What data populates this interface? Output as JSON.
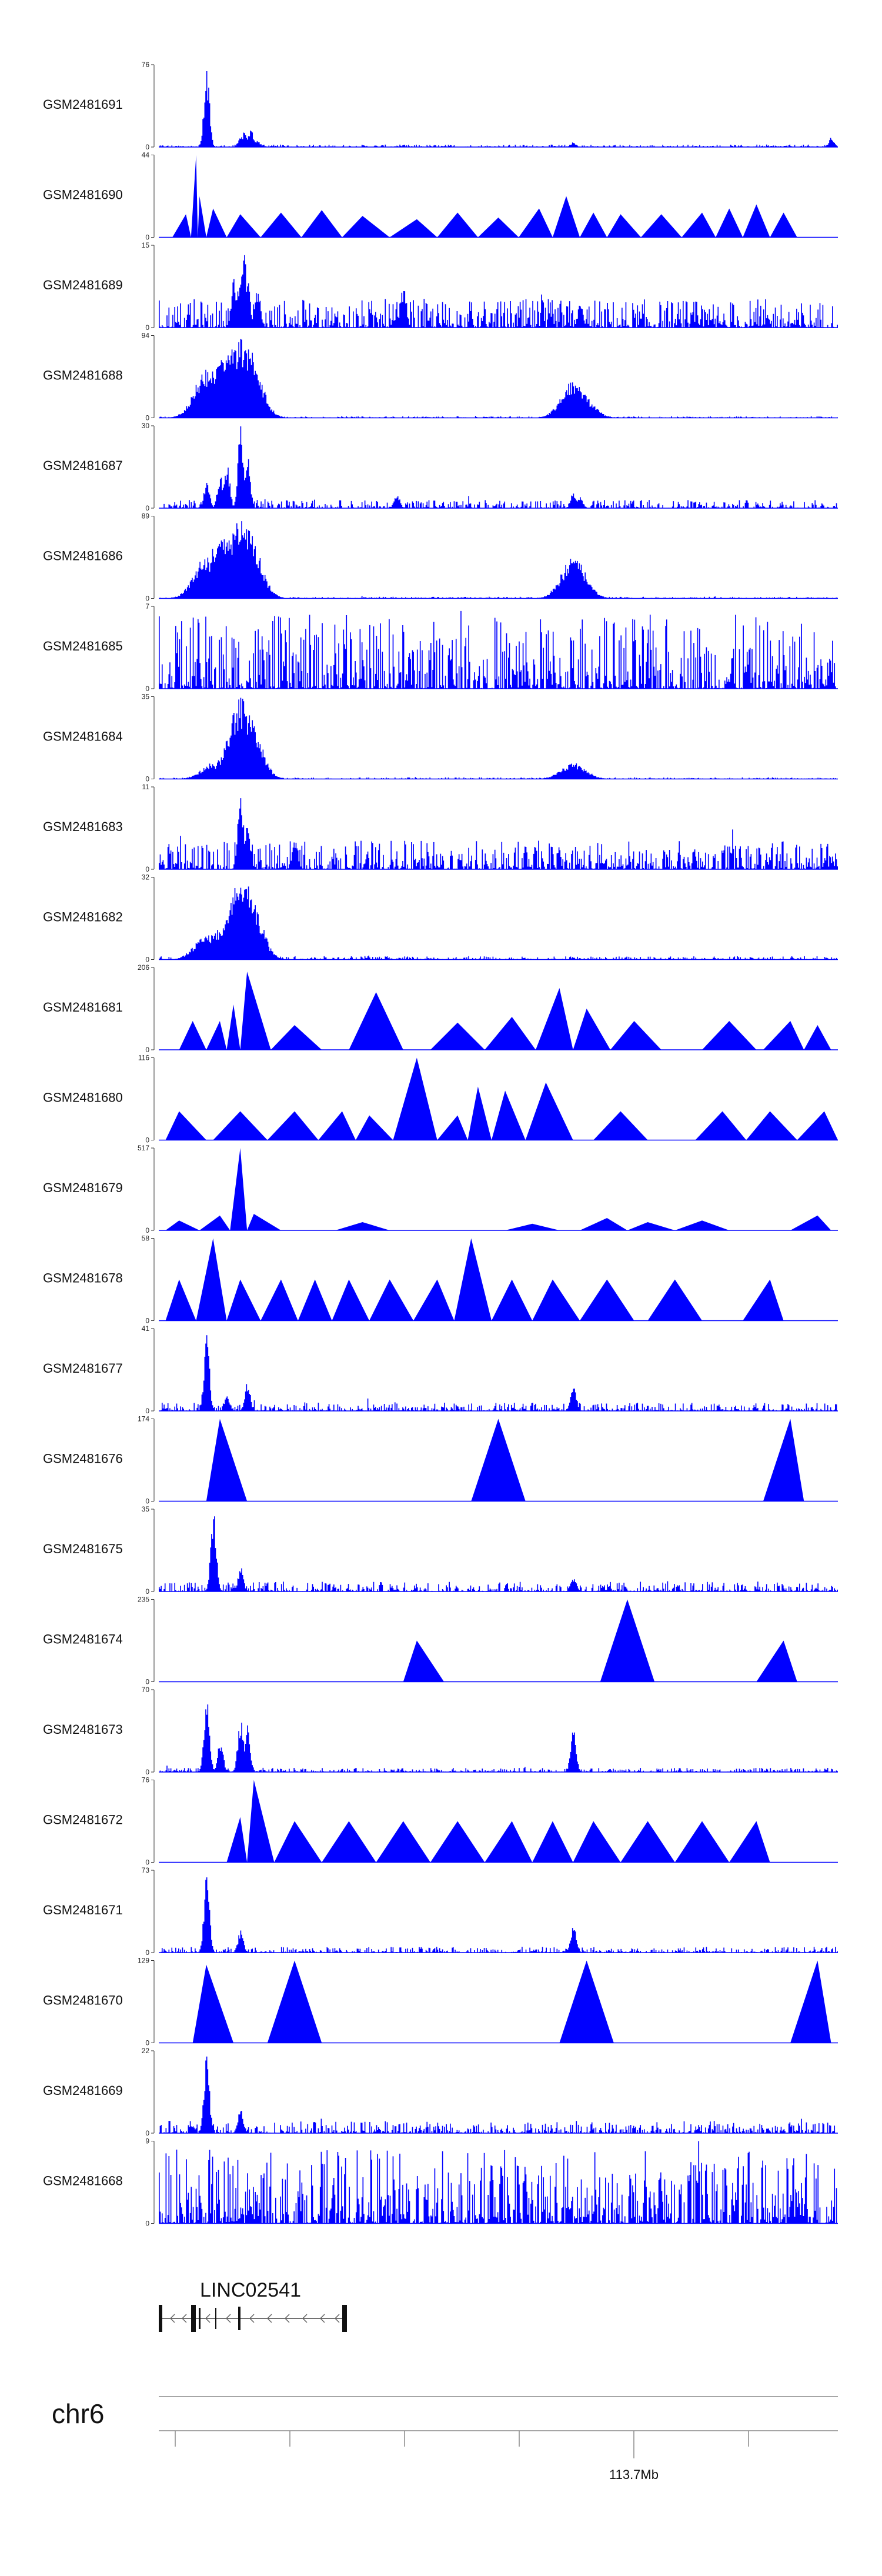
{
  "chart_data": {
    "type": "area",
    "color": "#0000ff",
    "chromosome": "chr6",
    "gene": {
      "name": "LINC02541",
      "strand": "-"
    },
    "coordinate_label": "113.7Mb",
    "tracks": [
      {
        "name": "GSM2481691",
        "max": 76,
        "min": 0,
        "peaks": [
          [
            0.07,
            1.0
          ],
          [
            0.12,
            0.13
          ],
          [
            0.125,
            0.18
          ],
          [
            0.135,
            0.22
          ],
          [
            0.145,
            0.08
          ],
          [
            0.61,
            0.06
          ],
          [
            0.99,
            0.12
          ]
        ],
        "mode": "narrow",
        "noise": 0.03
      },
      {
        "name": "GSM2481690",
        "max": 44,
        "min": 0,
        "peaks": [
          [
            0.04,
            0.28
          ],
          [
            0.055,
            1.0
          ],
          [
            0.06,
            0.5
          ],
          [
            0.08,
            0.35
          ],
          [
            0.12,
            0.28
          ],
          [
            0.18,
            0.3
          ],
          [
            0.24,
            0.33
          ],
          [
            0.3,
            0.26
          ],
          [
            0.38,
            0.22
          ],
          [
            0.44,
            0.3
          ],
          [
            0.5,
            0.24
          ],
          [
            0.56,
            0.35
          ],
          [
            0.6,
            0.5
          ],
          [
            0.64,
            0.3
          ],
          [
            0.68,
            0.28
          ],
          [
            0.74,
            0.28
          ],
          [
            0.8,
            0.3
          ],
          [
            0.84,
            0.35
          ],
          [
            0.88,
            0.4
          ],
          [
            0.92,
            0.3
          ]
        ],
        "mode": "tri",
        "noise": 0.0
      },
      {
        "name": "GSM2481689",
        "max": 15,
        "min": 0,
        "peaks": [
          [
            0.11,
            0.6
          ],
          [
            0.12,
            0.8
          ],
          [
            0.125,
            1.0
          ],
          [
            0.13,
            0.7
          ],
          [
            0.145,
            0.5
          ],
          [
            0.36,
            0.55
          ],
          [
            0.62,
            0.3
          ]
        ],
        "mode": "narrow",
        "noise": 0.35
      },
      {
        "name": "GSM2481688",
        "max": 94,
        "min": 0,
        "peaks": [
          [
            0.07,
            0.6
          ],
          [
            0.09,
            0.7
          ],
          [
            0.1,
            0.8
          ],
          [
            0.11,
            0.85
          ],
          [
            0.12,
            1.0
          ],
          [
            0.13,
            0.9
          ],
          [
            0.61,
            0.45
          ],
          [
            0.62,
            0.3
          ]
        ],
        "mode": "broad",
        "noise": 0.02
      },
      {
        "name": "GSM2481687",
        "max": 30,
        "min": 0,
        "peaks": [
          [
            0.07,
            0.35
          ],
          [
            0.09,
            0.45
          ],
          [
            0.1,
            0.55
          ],
          [
            0.12,
            1.0
          ],
          [
            0.13,
            0.7
          ],
          [
            0.35,
            0.2
          ],
          [
            0.61,
            0.22
          ],
          [
            0.62,
            0.15
          ]
        ],
        "mode": "narrow",
        "noise": 0.1
      },
      {
        "name": "GSM2481686",
        "max": 89,
        "min": 0,
        "peaks": [
          [
            0.07,
            0.55
          ],
          [
            0.09,
            0.75
          ],
          [
            0.1,
            0.8
          ],
          [
            0.12,
            1.0
          ],
          [
            0.13,
            0.85
          ],
          [
            0.61,
            0.5
          ]
        ],
        "mode": "broad",
        "noise": 0.02
      },
      {
        "name": "GSM2481685",
        "max": 7,
        "min": 0,
        "peaks": [],
        "mode": "narrow",
        "noise": 0.9
      },
      {
        "name": "GSM2481684",
        "max": 35,
        "min": 0,
        "peaks": [
          [
            0.08,
            0.2
          ],
          [
            0.1,
            0.3
          ],
          [
            0.12,
            1.0
          ],
          [
            0.13,
            0.8
          ],
          [
            0.61,
            0.2
          ]
        ],
        "mode": "broad",
        "noise": 0.02
      },
      {
        "name": "GSM2481683",
        "max": 11,
        "min": 0,
        "peaks": [
          [
            0.12,
            1.0
          ],
          [
            0.13,
            0.6
          ],
          [
            0.2,
            0.4
          ]
        ],
        "mode": "narrow",
        "noise": 0.35
      },
      {
        "name": "GSM2481682",
        "max": 32,
        "min": 0,
        "peaks": [
          [
            0.07,
            0.3
          ],
          [
            0.09,
            0.4
          ],
          [
            0.12,
            1.0
          ],
          [
            0.13,
            0.9
          ]
        ],
        "mode": "broad",
        "noise": 0.04
      },
      {
        "name": "GSM2481681",
        "max": 206,
        "min": 0,
        "peaks": [
          [
            0.05,
            0.35
          ],
          [
            0.09,
            0.35
          ],
          [
            0.11,
            0.55
          ],
          [
            0.13,
            0.95
          ],
          [
            0.2,
            0.3
          ],
          [
            0.32,
            0.7
          ],
          [
            0.44,
            0.33
          ],
          [
            0.52,
            0.4
          ],
          [
            0.59,
            0.75
          ],
          [
            0.63,
            0.5
          ],
          [
            0.7,
            0.35
          ],
          [
            0.84,
            0.35
          ],
          [
            0.93,
            0.35
          ],
          [
            0.97,
            0.3
          ]
        ],
        "mode": "tri",
        "noise": 0.0
      },
      {
        "name": "GSM2481680",
        "max": 116,
        "min": 0,
        "peaks": [
          [
            0.03,
            0.35
          ],
          [
            0.12,
            0.35
          ],
          [
            0.2,
            0.35
          ],
          [
            0.27,
            0.35
          ],
          [
            0.31,
            0.3
          ],
          [
            0.38,
            1.0
          ],
          [
            0.44,
            0.3
          ],
          [
            0.47,
            0.65
          ],
          [
            0.51,
            0.6
          ],
          [
            0.57,
            0.7
          ],
          [
            0.68,
            0.35
          ],
          [
            0.83,
            0.35
          ],
          [
            0.9,
            0.35
          ],
          [
            0.98,
            0.35
          ]
        ],
        "mode": "tri",
        "noise": 0.0
      },
      {
        "name": "GSM2481679",
        "max": 517,
        "min": 0,
        "peaks": [
          [
            0.03,
            0.12
          ],
          [
            0.09,
            0.18
          ],
          [
            0.12,
            1.0
          ],
          [
            0.14,
            0.2
          ],
          [
            0.3,
            0.1
          ],
          [
            0.55,
            0.08
          ],
          [
            0.66,
            0.15
          ],
          [
            0.72,
            0.1
          ],
          [
            0.8,
            0.12
          ],
          [
            0.97,
            0.18
          ]
        ],
        "mode": "tri",
        "noise": 0.0
      },
      {
        "name": "GSM2481678",
        "max": 58,
        "min": 0,
        "peaks": [
          [
            0.03,
            0.5
          ],
          [
            0.08,
            1.0
          ],
          [
            0.12,
            0.5
          ],
          [
            0.18,
            0.5
          ],
          [
            0.23,
            0.5
          ],
          [
            0.28,
            0.5
          ],
          [
            0.34,
            0.5
          ],
          [
            0.41,
            0.5
          ],
          [
            0.46,
            1.0
          ],
          [
            0.52,
            0.5
          ],
          [
            0.58,
            0.5
          ],
          [
            0.66,
            0.5
          ],
          [
            0.76,
            0.5
          ],
          [
            0.9,
            0.5
          ]
        ],
        "mode": "tri",
        "noise": 0.0
      },
      {
        "name": "GSM2481677",
        "max": 41,
        "min": 0,
        "peaks": [
          [
            0.07,
            1.0
          ],
          [
            0.1,
            0.2
          ],
          [
            0.13,
            0.35
          ],
          [
            0.61,
            0.35
          ]
        ],
        "mode": "narrow",
        "noise": 0.1
      },
      {
        "name": "GSM2481676",
        "max": 174,
        "min": 0,
        "peaks": [
          [
            0.09,
            1.0
          ],
          [
            0.5,
            1.0
          ],
          [
            0.93,
            1.0
          ]
        ],
        "mode": "tri",
        "noise": 0.0
      },
      {
        "name": "GSM2481675",
        "max": 35,
        "min": 0,
        "peaks": [
          [
            0.08,
            1.0
          ],
          [
            0.12,
            0.3
          ],
          [
            0.61,
            0.2
          ]
        ],
        "mode": "narrow",
        "noise": 0.12
      },
      {
        "name": "GSM2481674",
        "max": 235,
        "min": 0,
        "peaks": [
          [
            0.38,
            0.5
          ],
          [
            0.69,
            1.0
          ],
          [
            0.92,
            0.5
          ]
        ],
        "mode": "tri",
        "noise": 0.0
      },
      {
        "name": "GSM2481673",
        "max": 70,
        "min": 0,
        "peaks": [
          [
            0.07,
            1.0
          ],
          [
            0.09,
            0.4
          ],
          [
            0.12,
            0.7
          ],
          [
            0.13,
            0.6
          ],
          [
            0.61,
            0.55
          ]
        ],
        "mode": "narrow",
        "noise": 0.05
      },
      {
        "name": "GSM2481672",
        "max": 76,
        "min": 0,
        "peaks": [
          [
            0.12,
            0.55
          ],
          [
            0.14,
            1.0
          ],
          [
            0.2,
            0.5
          ],
          [
            0.28,
            0.5
          ],
          [
            0.36,
            0.5
          ],
          [
            0.44,
            0.5
          ],
          [
            0.52,
            0.5
          ],
          [
            0.58,
            0.5
          ],
          [
            0.64,
            0.5
          ],
          [
            0.72,
            0.5
          ],
          [
            0.8,
            0.5
          ],
          [
            0.88,
            0.5
          ]
        ],
        "mode": "tri",
        "noise": 0.0
      },
      {
        "name": "GSM2481671",
        "max": 73,
        "min": 0,
        "peaks": [
          [
            0.07,
            1.0
          ],
          [
            0.12,
            0.3
          ],
          [
            0.61,
            0.35
          ]
        ],
        "mode": "narrow",
        "noise": 0.07
      },
      {
        "name": "GSM2481670",
        "max": 129,
        "min": 0,
        "peaks": [
          [
            0.07,
            0.95
          ],
          [
            0.2,
            1.0
          ],
          [
            0.63,
            1.0
          ],
          [
            0.97,
            1.0
          ]
        ],
        "mode": "tri",
        "noise": 0.0
      },
      {
        "name": "GSM2481669",
        "max": 22,
        "min": 0,
        "peaks": [
          [
            0.07,
            1.0
          ],
          [
            0.12,
            0.3
          ]
        ],
        "mode": "narrow",
        "noise": 0.15
      },
      {
        "name": "GSM2481668",
        "max": 9,
        "min": 0,
        "peaks": [],
        "mode": "narrow",
        "noise": 0.9
      }
    ]
  }
}
